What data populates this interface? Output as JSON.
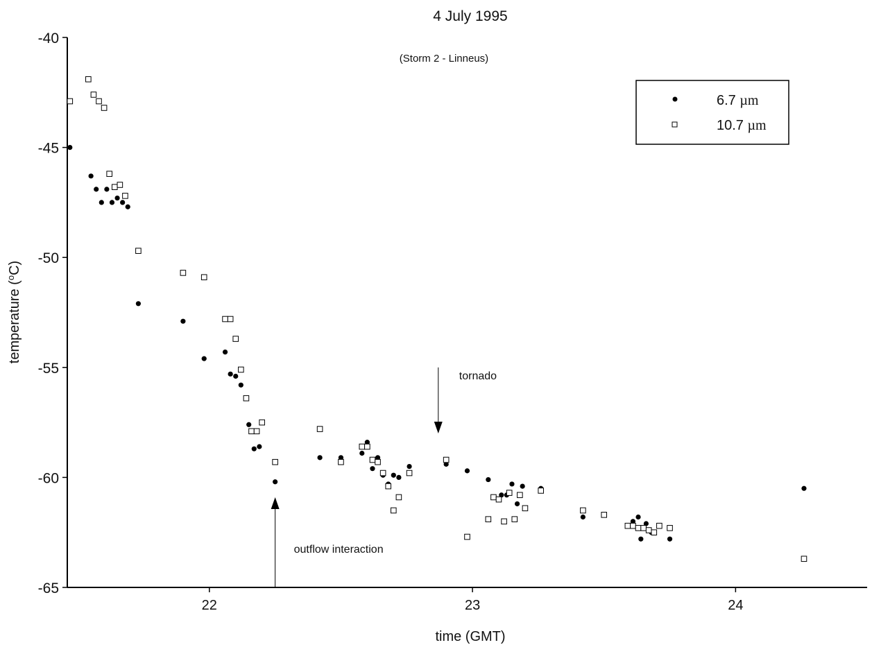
{
  "chart_data": {
    "type": "scatter",
    "title": "4 July 1995",
    "subtitle": "(Storm 2 - Linneus)",
    "xlabel": "time (GMT)",
    "ylabel_main": "temperature (",
    "ylabel_sup": "o",
    "ylabel_end": "C)",
    "xlim": [
      21.46,
      24.5
    ],
    "ylim": [
      -65,
      -40
    ],
    "xticks": [
      22,
      23,
      24
    ],
    "yticks": [
      -40,
      -45,
      -50,
      -55,
      -60,
      -65
    ],
    "grid": false,
    "legend_position": "top-right",
    "series": [
      {
        "name_main": "6.7 ",
        "name_unit": "µm",
        "marker": "filled-circle",
        "points": [
          [
            21.47,
            -45.0
          ],
          [
            21.55,
            -46.3
          ],
          [
            21.57,
            -46.9
          ],
          [
            21.59,
            -47.5
          ],
          [
            21.61,
            -46.9
          ],
          [
            21.63,
            -47.5
          ],
          [
            21.65,
            -47.3
          ],
          [
            21.67,
            -47.5
          ],
          [
            21.69,
            -47.7
          ],
          [
            21.73,
            -52.1
          ],
          [
            21.9,
            -52.9
          ],
          [
            21.98,
            -54.6
          ],
          [
            22.06,
            -54.3
          ],
          [
            22.08,
            -55.3
          ],
          [
            22.1,
            -55.4
          ],
          [
            22.12,
            -55.8
          ],
          [
            22.15,
            -57.6
          ],
          [
            22.17,
            -58.7
          ],
          [
            22.19,
            -58.6
          ],
          [
            22.25,
            -60.2
          ],
          [
            22.42,
            -59.1
          ],
          [
            22.5,
            -59.1
          ],
          [
            22.58,
            -58.9
          ],
          [
            22.6,
            -58.4
          ],
          [
            22.62,
            -59.6
          ],
          [
            22.64,
            -59.1
          ],
          [
            22.66,
            -59.9
          ],
          [
            22.68,
            -60.3
          ],
          [
            22.7,
            -59.9
          ],
          [
            22.72,
            -60.0
          ],
          [
            22.76,
            -59.5
          ],
          [
            22.9,
            -59.4
          ],
          [
            22.98,
            -59.7
          ],
          [
            23.06,
            -60.1
          ],
          [
            23.11,
            -60.8
          ],
          [
            23.13,
            -60.8
          ],
          [
            23.15,
            -60.3
          ],
          [
            23.17,
            -61.2
          ],
          [
            23.19,
            -60.4
          ],
          [
            23.26,
            -60.5
          ],
          [
            23.42,
            -61.8
          ],
          [
            23.5,
            -61.7
          ],
          [
            23.61,
            -62.0
          ],
          [
            23.63,
            -61.8
          ],
          [
            23.64,
            -62.8
          ],
          [
            23.66,
            -62.1
          ],
          [
            23.68,
            -62.5
          ],
          [
            23.75,
            -62.8
          ],
          [
            24.26,
            -60.5
          ]
        ]
      },
      {
        "name_main": "10.7 ",
        "name_unit": "µm",
        "marker": "open-square",
        "points": [
          [
            21.47,
            -42.9
          ],
          [
            21.54,
            -41.9
          ],
          [
            21.56,
            -42.6
          ],
          [
            21.58,
            -42.9
          ],
          [
            21.6,
            -43.2
          ],
          [
            21.62,
            -46.2
          ],
          [
            21.64,
            -46.8
          ],
          [
            21.66,
            -46.7
          ],
          [
            21.68,
            -47.2
          ],
          [
            21.73,
            -49.7
          ],
          [
            21.9,
            -50.7
          ],
          [
            21.98,
            -50.9
          ],
          [
            22.06,
            -52.8
          ],
          [
            22.08,
            -52.8
          ],
          [
            22.1,
            -53.7
          ],
          [
            22.12,
            -55.1
          ],
          [
            22.14,
            -56.4
          ],
          [
            22.16,
            -57.9
          ],
          [
            22.18,
            -57.9
          ],
          [
            22.2,
            -57.5
          ],
          [
            22.25,
            -59.3
          ],
          [
            22.42,
            -57.8
          ],
          [
            22.5,
            -59.3
          ],
          [
            22.58,
            -58.6
          ],
          [
            22.6,
            -58.6
          ],
          [
            22.62,
            -59.2
          ],
          [
            22.64,
            -59.3
          ],
          [
            22.66,
            -59.8
          ],
          [
            22.68,
            -60.4
          ],
          [
            22.7,
            -61.5
          ],
          [
            22.72,
            -60.9
          ],
          [
            22.76,
            -59.8
          ],
          [
            22.9,
            -59.2
          ],
          [
            22.98,
            -62.7
          ],
          [
            23.06,
            -61.9
          ],
          [
            23.08,
            -60.9
          ],
          [
            23.1,
            -61.0
          ],
          [
            23.12,
            -62.0
          ],
          [
            23.14,
            -60.7
          ],
          [
            23.16,
            -61.9
          ],
          [
            23.18,
            -60.8
          ],
          [
            23.2,
            -61.4
          ],
          [
            23.26,
            -60.6
          ],
          [
            23.42,
            -61.5
          ],
          [
            23.5,
            -61.7
          ],
          [
            23.59,
            -62.2
          ],
          [
            23.61,
            -62.2
          ],
          [
            23.63,
            -62.3
          ],
          [
            23.65,
            -62.3
          ],
          [
            23.67,
            -62.4
          ],
          [
            23.69,
            -62.5
          ],
          [
            23.71,
            -62.2
          ],
          [
            23.75,
            -62.3
          ],
          [
            24.26,
            -63.7
          ]
        ]
      }
    ],
    "annotations": [
      {
        "text": "tornado",
        "x": 22.87,
        "y_from": -55.0,
        "y_to": -58.0,
        "direction": "down"
      },
      {
        "text": "outflow interaction",
        "x": 22.25,
        "y_from": -65.0,
        "y_to": -60.9,
        "direction": "up"
      }
    ]
  }
}
